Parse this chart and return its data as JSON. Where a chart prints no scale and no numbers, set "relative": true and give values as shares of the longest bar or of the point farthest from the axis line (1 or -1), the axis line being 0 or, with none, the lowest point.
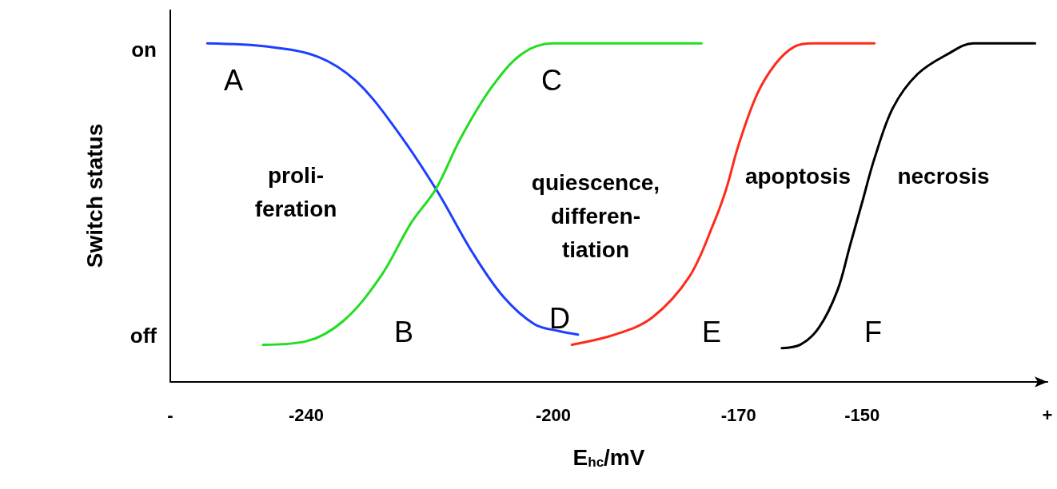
{
  "chart_data": {
    "type": "line",
    "xlabel": "E$_{hc}$/mV",
    "ylabel": "Switch status",
    "relative": true,
    "xlim": [
      -262,
      -120
    ],
    "xticks": [
      {
        "value": -262,
        "label": "-"
      },
      -240,
      -200,
      -170,
      -150,
      {
        "value": -120,
        "label": "+"
      }
    ],
    "grid": false,
    "marker": "none",
    "line_style": "solid",
    "series": [
      {
        "color": "#1f3fff",
        "x": [
          -256,
          -246,
          -238,
          -232,
          -226,
          -219,
          -213,
          -208,
          -203,
          -199,
          -196
        ],
        "values": [
          1,
          0.99,
          0.96,
          0.89,
          0.76,
          0.57,
          0.38,
          0.25,
          0.17,
          0.15,
          0.14
        ]
      },
      {
        "color": "#22dd22",
        "x": [
          -247,
          -240,
          -234,
          -228,
          -223,
          -219,
          -215,
          -210,
          -205,
          -200,
          -176
        ],
        "values": [
          0.11,
          0.12,
          0.18,
          0.31,
          0.47,
          0.57,
          0.72,
          0.87,
          0.97,
          1,
          1
        ]
      },
      {
        "color": "#ff2a1a",
        "x": [
          -197,
          -190,
          -184,
          -178,
          -174,
          -172,
          -170,
          -167,
          -164,
          -161,
          -158,
          -148
        ],
        "values": [
          0.11,
          0.14,
          0.19,
          0.31,
          0.47,
          0.57,
          0.7,
          0.85,
          0.94,
          0.99,
          1,
          1
        ]
      },
      {
        "color": "#000000",
        "x": [
          -163,
          -160,
          -157,
          -154,
          -152,
          -150,
          -148,
          -145,
          -141,
          -136,
          -132,
          -122
        ],
        "values": [
          0.1,
          0.11,
          0.16,
          0.27,
          0.4,
          0.53,
          0.66,
          0.81,
          0.91,
          0.97,
          1,
          1
        ]
      }
    ],
    "annotations": [
      "on",
      "off",
      "A",
      "B",
      "C",
      "D",
      "E",
      "F",
      "proli-\nferation",
      "quiescence,\ndifferen-\ntiation",
      "apoptosis",
      "necrosis"
    ]
  }
}
